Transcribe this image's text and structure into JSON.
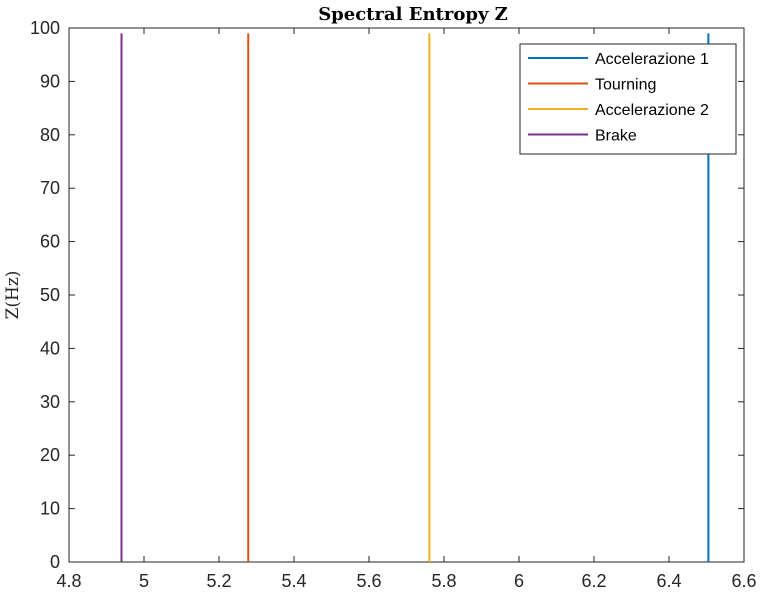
{
  "chart_data": {
    "type": "line",
    "title": "Spectral Entropy Z",
    "xlabel": "",
    "ylabel": "Z(Hz)",
    "xlim": [
      4.8,
      6.6
    ],
    "ylim": [
      0,
      100
    ],
    "xticks": [
      "4.8",
      "5",
      "5.2",
      "5.4",
      "5.6",
      "5.8",
      "6",
      "6.2",
      "6.4",
      "6.6"
    ],
    "yticks": [
      "0",
      "10",
      "20",
      "30",
      "40",
      "50",
      "60",
      "70",
      "80",
      "90",
      "100"
    ],
    "grid": false,
    "legend_position": "top-right",
    "series": [
      {
        "name": "Accelerazione 1",
        "color": "#0072BD",
        "x": [
          6.505,
          6.505
        ],
        "y": [
          0,
          99
        ]
      },
      {
        "name": "Tourning",
        "color": "#D95319",
        "x": [
          5.278,
          5.278
        ],
        "y": [
          0,
          99
        ]
      },
      {
        "name": "Accelerazione 2",
        "color": "#EDB120",
        "x": [
          5.761,
          5.761
        ],
        "y": [
          0,
          99
        ]
      },
      {
        "name": "Brake",
        "color": "#7E2F8E",
        "x": [
          4.94,
          4.94
        ],
        "y": [
          0,
          99
        ]
      }
    ]
  }
}
